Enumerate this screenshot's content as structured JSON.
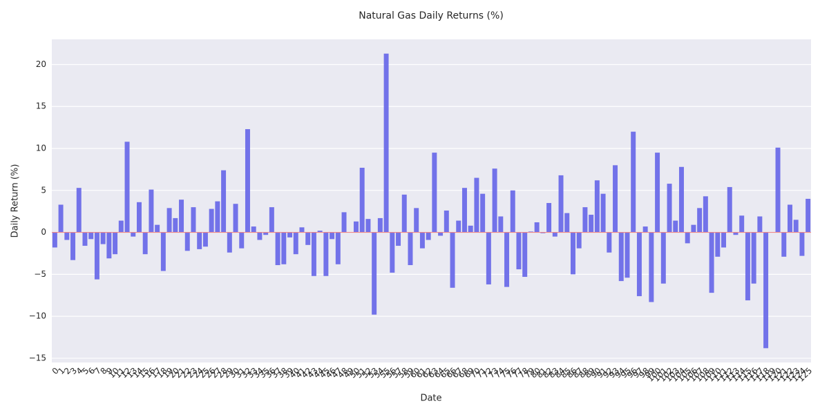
{
  "chart_data": {
    "type": "bar",
    "title": "Natural Gas Daily Returns (%)",
    "x_label": "Date",
    "y_label": "Daily Return (%)",
    "categories": [
      "0",
      "1",
      "2",
      "3",
      "4",
      "5",
      "6",
      "7",
      "8",
      "9",
      "10",
      "11",
      "12",
      "13",
      "14",
      "15",
      "16",
      "17",
      "18",
      "19",
      "20",
      "21",
      "22",
      "23",
      "24",
      "25",
      "26",
      "27",
      "28",
      "29",
      "30",
      "31",
      "32",
      "33",
      "34",
      "35",
      "36",
      "37",
      "38",
      "39",
      "40",
      "41",
      "42",
      "43",
      "44",
      "45",
      "46",
      "47",
      "48",
      "49",
      "50",
      "51",
      "52",
      "53",
      "54",
      "55",
      "56",
      "57",
      "58",
      "59",
      "60",
      "61",
      "62",
      "63",
      "64",
      "65",
      "66",
      "67",
      "68",
      "69",
      "70",
      "71",
      "72",
      "73",
      "74",
      "75",
      "76",
      "77",
      "78",
      "79",
      "80",
      "81",
      "82",
      "83",
      "84",
      "85",
      "86",
      "87",
      "88",
      "89",
      "90",
      "91",
      "92",
      "93",
      "94",
      "95",
      "96",
      "97",
      "98",
      "99",
      "100",
      "101",
      "102",
      "103",
      "104",
      "105",
      "106",
      "107",
      "108",
      "109",
      "110",
      "111",
      "112",
      "113",
      "114",
      "115",
      "116",
      "117",
      "118",
      "119",
      "120",
      "121",
      "122",
      "123",
      "124",
      "125"
    ],
    "values": [
      -1.8,
      3.3,
      -0.9,
      -3.3,
      5.3,
      -1.6,
      -0.8,
      -5.6,
      -1.4,
      -3.1,
      -2.6,
      1.4,
      10.8,
      -0.5,
      3.6,
      -2.6,
      5.1,
      0.9,
      -4.6,
      2.9,
      1.7,
      3.9,
      -2.2,
      3.0,
      -2.0,
      -1.7,
      2.8,
      3.7,
      7.4,
      -2.4,
      3.4,
      -1.9,
      12.3,
      0.7,
      -0.9,
      -0.3,
      3.0,
      -3.9,
      -3.8,
      -0.6,
      -2.6,
      0.6,
      -1.5,
      -5.2,
      0.2,
      -5.2,
      -0.8,
      -3.8,
      2.4,
      0.0,
      1.3,
      7.7,
      1.6,
      -9.8,
      1.7,
      21.3,
      -4.8,
      -1.6,
      4.5,
      -3.9,
      2.9,
      -1.9,
      -0.9,
      9.5,
      -0.4,
      2.6,
      -6.6,
      1.4,
      5.3,
      0.8,
      6.5,
      4.6,
      -6.2,
      7.6,
      1.9,
      -6.5,
      5.0,
      -4.4,
      -5.3,
      0.1,
      1.2,
      -0.1,
      3.5,
      -0.5,
      6.8,
      2.3,
      -5.0,
      -1.9,
      3.0,
      2.1,
      6.2,
      4.6,
      -2.4,
      8.0,
      -5.8,
      -5.4,
      12.0,
      -7.6,
      0.7,
      -8.3,
      9.5,
      -6.1,
      5.8,
      1.4,
      7.8,
      -1.3,
      0.9,
      2.9,
      4.3,
      -7.2,
      -2.9,
      -1.8,
      5.4,
      -0.3,
      2.0,
      -8.1,
      -6.1,
      1.9,
      -13.8,
      0.0,
      10.1,
      -2.9,
      3.3,
      1.5,
      -2.8,
      4.0
    ],
    "color": "#6b6be8",
    "ylim": [
      -15.5,
      23
    ],
    "yticks": [
      {
        "value": -15,
        "label": "−15"
      },
      {
        "value": -10,
        "label": "−10"
      },
      {
        "value": -5,
        "label": "−5"
      },
      0,
      5,
      10,
      15,
      20
    ],
    "grid": true,
    "hline": {
      "value": 0,
      "color": "#f08888"
    }
  }
}
